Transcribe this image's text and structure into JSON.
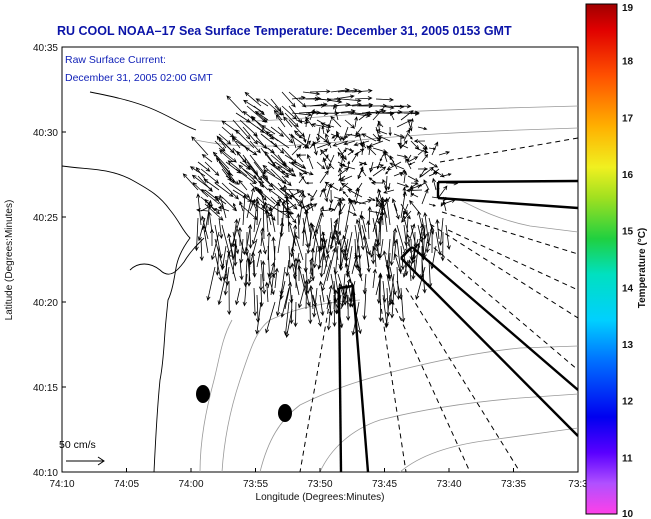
{
  "title": "RU COOL  NOAA–17  Sea Surface Temperature:  December 31, 2005 0153 GMT",
  "current_label": "Raw Surface Current:",
  "current_time": "December 31, 2005 02:00 GMT",
  "scale_label": "50 cm/s",
  "colors": {
    "title": "#0b14a8",
    "annotation": "#1222b8",
    "land": "#ffffff",
    "ocean": "#ffffff",
    "contour": "#999999"
  },
  "chart_data": {
    "type": "vector-field",
    "xlabel": "Longitude (Degrees:Minutes)",
    "ylabel": "Latitude (Degrees:Minutes)",
    "x_ticks": [
      "74:10",
      "74:05",
      "74:00",
      "73:55",
      "73:50",
      "73:45",
      "73:40",
      "73:35",
      "73:3"
    ],
    "x_range_minutes_west": [
      10,
      30
    ],
    "y_ticks": [
      "40:10",
      "40:15",
      "40:20",
      "40:25",
      "40:30",
      "40:35"
    ],
    "y_range_minutes": [
      10,
      35
    ],
    "colorbar": {
      "label": "Temperature (°C)",
      "ticks": [
        "10",
        "11",
        "12",
        "13",
        "14",
        "15",
        "16",
        "17",
        "18",
        "19"
      ],
      "range": [
        10,
        19
      ]
    },
    "scale_vector_cm_s": 50
  }
}
